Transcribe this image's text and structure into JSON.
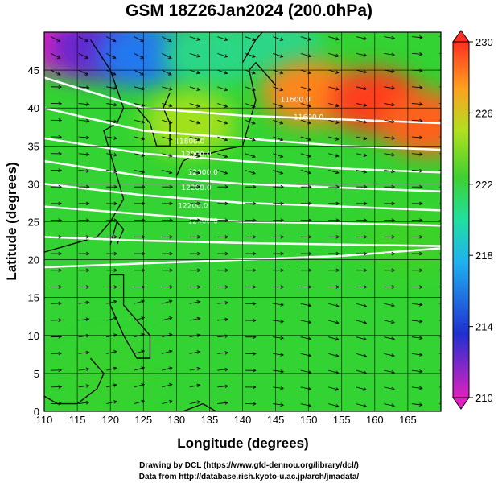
{
  "chart_data": {
    "type": "heatmap",
    "title": "GSM 18Z26Jan2024 (200.0hPa)",
    "xlabel": "Longitude (degrees)",
    "ylabel": "Latitude  (degrees)",
    "xlim": [
      110,
      170
    ],
    "ylim": [
      0,
      50
    ],
    "x_ticks": [
      "110",
      "115",
      "120",
      "125",
      "130",
      "135",
      "140",
      "145",
      "150",
      "155",
      "160",
      "165"
    ],
    "y_ticks": [
      "0",
      "5",
      "10",
      "15",
      "20",
      "25",
      "30",
      "35",
      "40",
      "45"
    ],
    "grid": true,
    "colorbar": {
      "ticks": [
        "210",
        "214",
        "218",
        "222",
        "226",
        "230"
      ],
      "range": [
        210,
        230
      ],
      "position": "right"
    },
    "temperature_features": [
      {
        "lon": 112,
        "lat": 49,
        "value": 210
      },
      {
        "lon": 118,
        "lat": 48,
        "value": 212
      },
      {
        "lon": 125,
        "lat": 47,
        "value": 216
      },
      {
        "lon": 135,
        "lat": 47,
        "value": 219
      },
      {
        "lon": 145,
        "lat": 48,
        "value": 219
      },
      {
        "lon": 150,
        "lat": 42,
        "value": 227
      },
      {
        "lon": 160,
        "lat": 41,
        "value": 229
      },
      {
        "lon": 168,
        "lat": 38,
        "value": 228
      },
      {
        "lon": 132,
        "lat": 38,
        "value": 224
      },
      {
        "lon": 165,
        "lat": 22,
        "value": 222
      },
      {
        "lon": 120,
        "lat": 5,
        "value": 221
      }
    ],
    "contour_labels": [
      {
        "text": "11600.0",
        "lon": 148,
        "lat": 40.8
      },
      {
        "text": "11600.0",
        "lon": 150,
        "lat": 38.5
      },
      {
        "text": "11800.0",
        "lon": 132,
        "lat": 35.3
      },
      {
        "text": "12000.0",
        "lon": 133,
        "lat": 33.6
      },
      {
        "text": "12000.0",
        "lon": 134,
        "lat": 31.2
      },
      {
        "text": "12200.0",
        "lon": 133,
        "lat": 29.2
      },
      {
        "text": "12200.0",
        "lon": 132.5,
        "lat": 26.8
      },
      {
        "text": "12400.0",
        "lon": 134,
        "lat": 24.8
      }
    ],
    "colors": {
      "magenta": "#e020c0",
      "blue": "#2050e0",
      "cyan": "#20e0d0",
      "green": "#30d030",
      "yellow_green": "#90e020",
      "orange": "#ff9020",
      "red": "#ff3020"
    }
  },
  "credit_line1": "Drawing by DCL (https://www.gfd-dennou.org/library/dcl/)",
  "credit_line2": "Data from http://database.rish.kyoto-u.ac.jp/arch/jmadata/"
}
